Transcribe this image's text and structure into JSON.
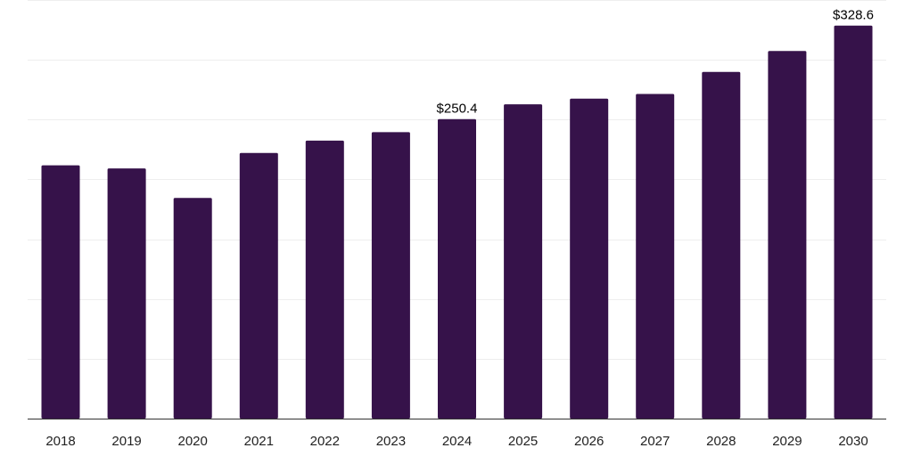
{
  "chart_data": {
    "type": "bar",
    "title": "",
    "xlabel": "",
    "ylabel": "",
    "categories": [
      "2018",
      "2019",
      "2020",
      "2021",
      "2022",
      "2023",
      "2024",
      "2025",
      "2026",
      "2027",
      "2028",
      "2029",
      "2030"
    ],
    "values": [
      211.8,
      209.2,
      184.5,
      222.1,
      232.4,
      239.5,
      250.4,
      262.8,
      267.5,
      271.4,
      289.8,
      307.3,
      328.6
    ],
    "ylim": [
      0,
      350
    ],
    "grid": true,
    "data_labels": [
      {
        "category": "2024",
        "text": "$250.4"
      },
      {
        "category": "2030",
        "text": "$328.6"
      }
    ],
    "colors": {
      "bar": "#36124a",
      "grid": "#eeeeee",
      "axis": "#333333"
    }
  }
}
